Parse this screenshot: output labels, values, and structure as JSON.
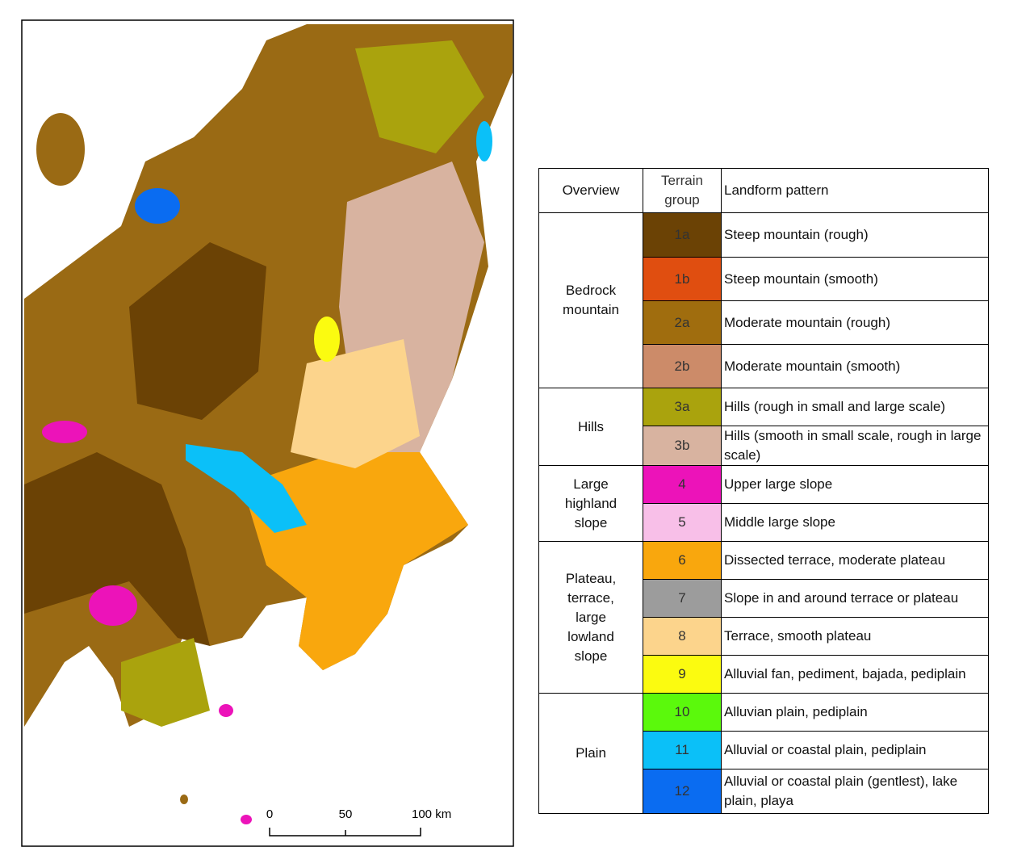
{
  "scale_bar": {
    "labels": [
      "0",
      "50",
      "100 km"
    ]
  },
  "legend": {
    "headers": [
      "Overview",
      "Terrain group",
      "Landform pattern"
    ],
    "groups": [
      {
        "overview": "Bedrock mountain",
        "items": [
          {
            "code": "1a",
            "color": "#6b4205",
            "pattern": "Steep mountain (rough)"
          },
          {
            "code": "1b",
            "color": "#e04e10",
            "pattern": "Steep mountain (smooth)"
          },
          {
            "code": "2a",
            "color": "#a06d0e",
            "pattern": "Moderate mountain (rough)"
          },
          {
            "code": "2b",
            "color": "#cc8b69",
            "pattern": "Moderate mountain (smooth)"
          }
        ]
      },
      {
        "overview": "Hills",
        "items": [
          {
            "code": "3a",
            "color": "#aaa30d",
            "pattern": "Hills (rough in small and large scale)"
          },
          {
            "code": "3b",
            "color": "#d8b3a0",
            "pattern": "Hills (smooth in small scale, rough in large scale)"
          }
        ]
      },
      {
        "overview": "Large highland slope",
        "items": [
          {
            "code": "4",
            "color": "#ec13b9",
            "pattern": "Upper large slope"
          },
          {
            "code": "5",
            "color": "#f8bfe8",
            "pattern": "Middle large slope"
          }
        ]
      },
      {
        "overview": "Plateau, terrace, large lowland slope",
        "items": [
          {
            "code": "6",
            "color": "#f9a70d",
            "pattern": "Dissected terrace, moderate plateau"
          },
          {
            "code": "7",
            "color": "#9c9c9c",
            "pattern": "Slope in and around terrace or plateau"
          },
          {
            "code": "8",
            "color": "#fcd48c",
            "pattern": "Terrace, smooth plateau"
          },
          {
            "code": "9",
            "color": "#fbfb10",
            "pattern": "Alluvial fan, pediment, bajada, pediplain"
          }
        ]
      },
      {
        "overview": "Plain",
        "items": [
          {
            "code": "10",
            "color": "#5bf90c",
            "pattern": "Alluvian plain, pediplain"
          },
          {
            "code": "11",
            "color": "#0bc0f8",
            "pattern": "Alluvial or coastal plain, pediplain"
          },
          {
            "code": "12",
            "color": "#0a6cf1",
            "pattern": "Alluvial or coastal plain (gentlest), lake plain, playa"
          }
        ]
      }
    ]
  }
}
